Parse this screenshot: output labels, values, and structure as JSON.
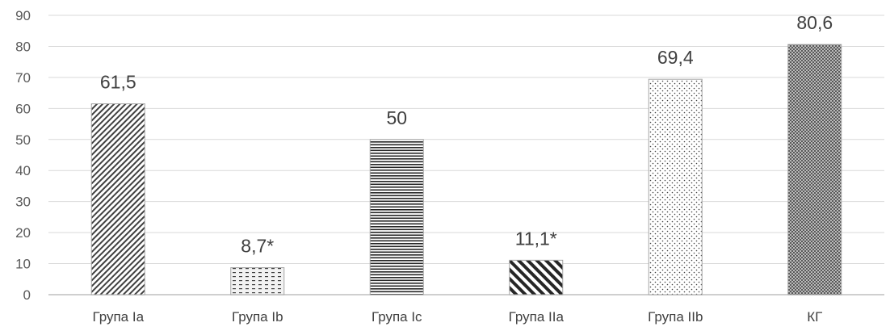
{
  "chart_data": {
    "type": "bar",
    "title": "",
    "xlabel": "",
    "ylabel": "",
    "categories": [
      "Група Ia",
      "Група Ib",
      "Група Ic",
      "Група IIa",
      "Група IIb",
      "КГ"
    ],
    "values": [
      61.5,
      8.7,
      50,
      11.1,
      69.4,
      80.6
    ],
    "data_labels": [
      "61,5",
      "8,7*",
      "50",
      "11,1*",
      "69,4",
      "80,6"
    ],
    "patterns": [
      "diagonal-right",
      "dashes",
      "horizontal-lines",
      "diagonal-left-wide",
      "dots",
      "crosshatch"
    ],
    "ylim": [
      0,
      90
    ],
    "yticks": [
      0,
      10,
      20,
      30,
      40,
      50,
      60,
      70,
      80,
      90
    ],
    "grid": true,
    "legend": "none",
    "colors": {
      "bar_fill": "#404040",
      "bar_border": "#a6a6a6",
      "grid": "#d9d9d9",
      "axis": "#bfbfbf"
    }
  }
}
